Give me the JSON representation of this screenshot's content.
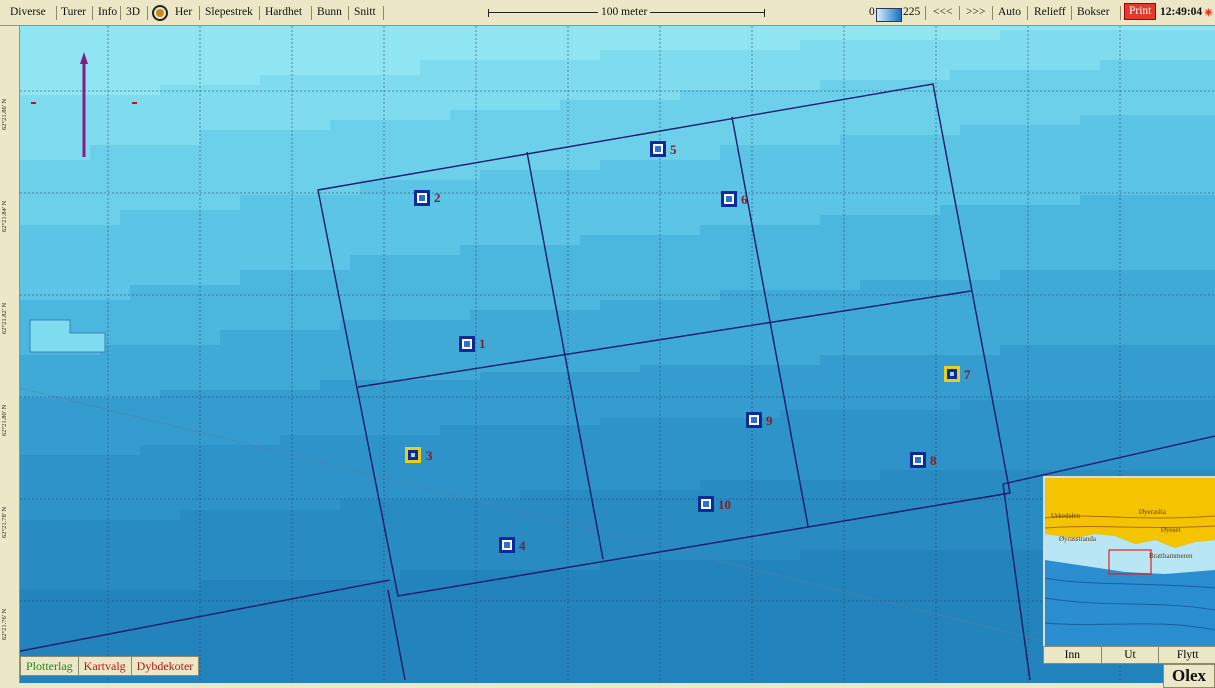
{
  "toolbar": {
    "menu": [
      "Diverse",
      "Turer",
      "Info",
      "3D",
      "Her",
      "Slepestrek",
      "Hardhet",
      "Bunn",
      "Snitt"
    ],
    "scale_label": "100 meter",
    "depth_min": "0",
    "depth_max": "225",
    "nav_back": "<<<",
    "nav_forward": ">>>",
    "auto": "Auto",
    "relieff": "Relieff",
    "bokser": "Bokser",
    "print": "Print",
    "clock": "12:49:04"
  },
  "rulers": {
    "latitudes": [
      "62°21.86' N",
      "62°21.84' N",
      "62°21.82' N",
      "62°21.80' N",
      "62°21.78' N",
      "62°21.76' N"
    ]
  },
  "waypoints": [
    {
      "label": "1",
      "style": "blue"
    },
    {
      "label": "2",
      "style": "blue"
    },
    {
      "label": "3",
      "style": "yellow"
    },
    {
      "label": "4",
      "style": "blue"
    },
    {
      "label": "5",
      "style": "blue"
    },
    {
      "label": "6",
      "style": "blue"
    },
    {
      "label": "7",
      "style": "yellow"
    },
    {
      "label": "8",
      "style": "blue"
    },
    {
      "label": "9",
      "style": "blue"
    },
    {
      "label": "10",
      "style": "blue"
    }
  ],
  "bottom_tabs": {
    "plotterlag": "Plotterlag",
    "kartvalg": "Kartvalg",
    "dybdekoter": "Dybdekoter"
  },
  "minimap": {
    "place_labels": [
      "Urkedalen",
      "Øyeraslia",
      "Øyeset",
      "Øyrasstranda",
      "Bratthammeren"
    ],
    "buttons": {
      "inn": "Inn",
      "ut": "Ut",
      "flytt": "Flytt"
    }
  },
  "brand": "Olex",
  "colors": {
    "waypoint_blue": "#0b2a9a",
    "waypoint_yellow": "#e7cf1a",
    "label_red": "#8a1c24",
    "print_red": "#e23a2c"
  }
}
